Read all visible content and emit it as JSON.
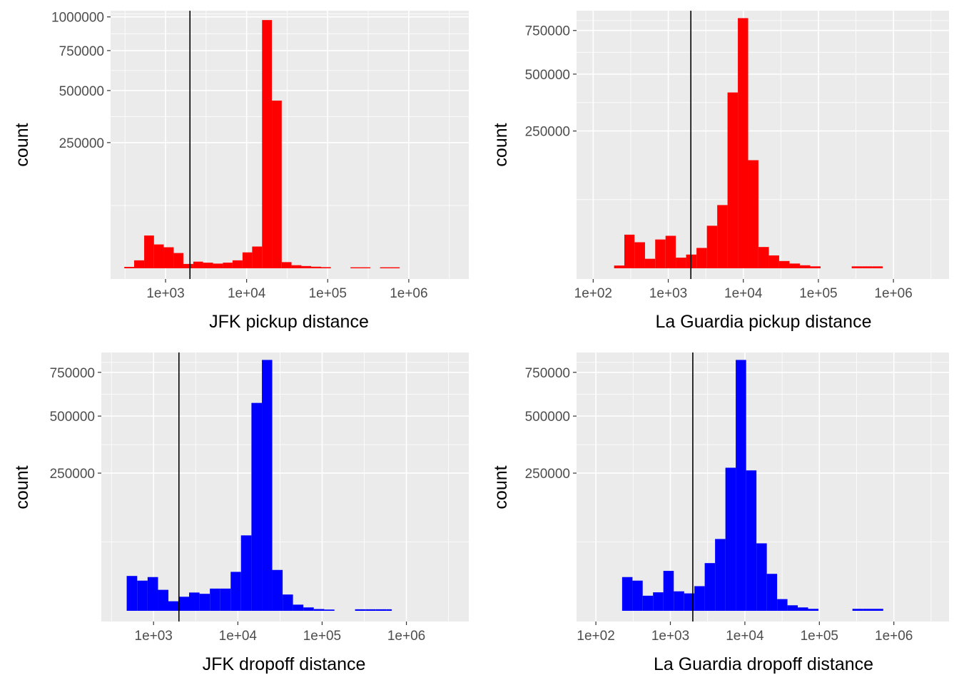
{
  "chart_data": [
    {
      "type": "bar",
      "title": "",
      "xlabel": "JFK pickup distance",
      "ylabel": "count",
      "x_scale": "log10",
      "y_scale": "sqrt",
      "xlim": [
        210,
        5500000
      ],
      "ylim": [
        0,
        1050000
      ],
      "x_ticks": [
        1000,
        10000,
        100000,
        1000000
      ],
      "x_tick_labels": [
        "1e+03",
        "1e+04",
        "1e+05",
        "1e+06"
      ],
      "y_ticks": [
        250000,
        500000,
        750000,
        1000000
      ],
      "y_tick_labels": [
        "250000",
        "500000",
        "750000",
        "1000000"
      ],
      "vline": 2000,
      "bar_color": "#ff0000",
      "grid": true,
      "bins": [
        {
          "x0": 310,
          "x1": 410,
          "count": 30
        },
        {
          "x0": 410,
          "x1": 545,
          "count": 1000
        },
        {
          "x0": 545,
          "x1": 720,
          "count": 17000
        },
        {
          "x0": 720,
          "x1": 950,
          "count": 9000
        },
        {
          "x0": 950,
          "x1": 1260,
          "count": 7000
        },
        {
          "x0": 1260,
          "x1": 1660,
          "count": 3700
        },
        {
          "x0": 1660,
          "x1": 2200,
          "count": 300
        },
        {
          "x0": 2200,
          "x1": 2900,
          "count": 700
        },
        {
          "x0": 2900,
          "x1": 3850,
          "count": 500
        },
        {
          "x0": 3850,
          "x1": 5100,
          "count": 350
        },
        {
          "x0": 5100,
          "x1": 6700,
          "count": 500
        },
        {
          "x0": 6700,
          "x1": 8900,
          "count": 1000
        },
        {
          "x0": 8900,
          "x1": 11700,
          "count": 4000
        },
        {
          "x0": 11700,
          "x1": 15500,
          "count": 7500
        },
        {
          "x0": 15500,
          "x1": 20500,
          "count": 975000
        },
        {
          "x0": 20500,
          "x1": 27100,
          "count": 445000
        },
        {
          "x0": 27100,
          "x1": 35800,
          "count": 600
        },
        {
          "x0": 35800,
          "x1": 47400,
          "count": 150
        },
        {
          "x0": 47400,
          "x1": 62600,
          "count": 80
        },
        {
          "x0": 62600,
          "x1": 82800,
          "count": 40
        },
        {
          "x0": 82800,
          "x1": 109500,
          "count": 20
        },
        {
          "x0": 191000,
          "x1": 253000,
          "count": 15
        },
        {
          "x0": 253000,
          "x1": 335000,
          "count": 15
        },
        {
          "x0": 442000,
          "x1": 585000,
          "count": 15
        },
        {
          "x0": 585000,
          "x1": 773000,
          "count": 15
        }
      ]
    },
    {
      "type": "bar",
      "title": "",
      "xlabel": "La Guardia pickup distance",
      "ylabel": "count",
      "x_scale": "log10",
      "y_scale": "sqrt",
      "xlim": [
        60,
        5500000
      ],
      "ylim": [
        0,
        880000
      ],
      "x_ticks": [
        100,
        1000,
        10000,
        100000,
        1000000
      ],
      "x_tick_labels": [
        "1e+02",
        "1e+03",
        "1e+04",
        "1e+05",
        "1e+06"
      ],
      "y_ticks": [
        250000,
        500000,
        750000
      ],
      "y_tick_labels": [
        "250000",
        "500000",
        "750000"
      ],
      "vline": 2000,
      "bar_color": "#ff0000",
      "grid": true,
      "bins": [
        {
          "x0": 190,
          "x1": 260,
          "count": 100
        },
        {
          "x0": 260,
          "x1": 355,
          "count": 15000
        },
        {
          "x0": 355,
          "x1": 490,
          "count": 9000
        },
        {
          "x0": 490,
          "x1": 670,
          "count": 1200
        },
        {
          "x0": 670,
          "x1": 920,
          "count": 11000
        },
        {
          "x0": 920,
          "x1": 1260,
          "count": 14000
        },
        {
          "x0": 1260,
          "x1": 1730,
          "count": 1500
        },
        {
          "x0": 1730,
          "x1": 2380,
          "count": 2500
        },
        {
          "x0": 2380,
          "x1": 3270,
          "count": 5500
        },
        {
          "x0": 3270,
          "x1": 4490,
          "count": 24000
        },
        {
          "x0": 4490,
          "x1": 6160,
          "count": 53000
        },
        {
          "x0": 6160,
          "x1": 8460,
          "count": 410000
        },
        {
          "x0": 8460,
          "x1": 11600,
          "count": 830000
        },
        {
          "x0": 11600,
          "x1": 15900,
          "count": 155000
        },
        {
          "x0": 15900,
          "x1": 21900,
          "count": 6000
        },
        {
          "x0": 21900,
          "x1": 30000,
          "count": 2200
        },
        {
          "x0": 30000,
          "x1": 41300,
          "count": 700
        },
        {
          "x0": 41300,
          "x1": 56700,
          "count": 300
        },
        {
          "x0": 56700,
          "x1": 77800,
          "count": 120
        },
        {
          "x0": 77800,
          "x1": 107000,
          "count": 50
        },
        {
          "x0": 278000,
          "x1": 382000,
          "count": 50
        },
        {
          "x0": 382000,
          "x1": 525000,
          "count": 50
        },
        {
          "x0": 525000,
          "x1": 720000,
          "count": 50
        }
      ]
    },
    {
      "type": "bar",
      "title": "",
      "xlabel": "JFK dropoff distance",
      "ylabel": "count",
      "x_scale": "log10",
      "y_scale": "sqrt",
      "xlim": [
        240,
        5500000
      ],
      "ylim": [
        0,
        880000
      ],
      "x_ticks": [
        1000,
        10000,
        100000,
        1000000
      ],
      "x_tick_labels": [
        "1e+03",
        "1e+04",
        "1e+05",
        "1e+06"
      ],
      "y_ticks": [
        250000,
        500000,
        750000
      ],
      "y_tick_labels": [
        "250000",
        "500000",
        "750000"
      ],
      "vline": 2000,
      "bar_color": "#0000ff",
      "grid": true,
      "bins": [
        {
          "x0": 480,
          "x1": 640,
          "count": 16000
        },
        {
          "x0": 640,
          "x1": 850,
          "count": 12000
        },
        {
          "x0": 850,
          "x1": 1130,
          "count": 15000
        },
        {
          "x0": 1130,
          "x1": 1500,
          "count": 5800
        },
        {
          "x0": 1500,
          "x1": 1990,
          "count": 1200
        },
        {
          "x0": 1990,
          "x1": 2640,
          "count": 2600
        },
        {
          "x0": 2640,
          "x1": 3510,
          "count": 4400
        },
        {
          "x0": 3510,
          "x1": 4660,
          "count": 3800
        },
        {
          "x0": 4660,
          "x1": 6190,
          "count": 6500
        },
        {
          "x0": 6190,
          "x1": 8220,
          "count": 6500
        },
        {
          "x0": 8220,
          "x1": 10900,
          "count": 20000
        },
        {
          "x0": 10900,
          "x1": 14500,
          "count": 75000
        },
        {
          "x0": 14500,
          "x1": 19300,
          "count": 570000
        },
        {
          "x0": 19300,
          "x1": 25600,
          "count": 830000
        },
        {
          "x0": 25600,
          "x1": 34000,
          "count": 22000
        },
        {
          "x0": 34000,
          "x1": 45100,
          "count": 3500
        },
        {
          "x0": 45100,
          "x1": 59900,
          "count": 500
        },
        {
          "x0": 59900,
          "x1": 79600,
          "count": 150
        },
        {
          "x0": 79600,
          "x1": 106000,
          "count": 40
        },
        {
          "x0": 106000,
          "x1": 140000,
          "count": 20
        },
        {
          "x0": 246000,
          "x1": 327000,
          "count": 30
        },
        {
          "x0": 327000,
          "x1": 434000,
          "count": 30
        },
        {
          "x0": 434000,
          "x1": 576000,
          "count": 30
        },
        {
          "x0": 576000,
          "x1": 670000,
          "count": 30
        }
      ]
    },
    {
      "type": "bar",
      "title": "",
      "xlabel": "La Guardia dropoff distance",
      "ylabel": "count",
      "x_scale": "log10",
      "y_scale": "sqrt",
      "xlim": [
        55,
        5500000
      ],
      "ylim": [
        0,
        880000
      ],
      "x_ticks": [
        100,
        1000,
        10000,
        100000,
        1000000
      ],
      "x_tick_labels": [
        "1e+02",
        "1e+03",
        "1e+04",
        "1e+05",
        "1e+06"
      ],
      "y_ticks": [
        250000,
        500000,
        750000
      ],
      "y_tick_labels": [
        "250000",
        "500000",
        "750000"
      ],
      "vline": 2000,
      "bar_color": "#0000ff",
      "grid": true,
      "bins": [
        {
          "x0": 225,
          "x1": 310,
          "count": 15000
        },
        {
          "x0": 310,
          "x1": 425,
          "count": 12000
        },
        {
          "x0": 425,
          "x1": 585,
          "count": 3000
        },
        {
          "x0": 585,
          "x1": 805,
          "count": 4500
        },
        {
          "x0": 805,
          "x1": 1110,
          "count": 21000
        },
        {
          "x0": 1110,
          "x1": 1530,
          "count": 5000
        },
        {
          "x0": 1530,
          "x1": 2100,
          "count": 4000
        },
        {
          "x0": 2100,
          "x1": 2890,
          "count": 8000
        },
        {
          "x0": 2890,
          "x1": 3980,
          "count": 30000
        },
        {
          "x0": 3980,
          "x1": 5480,
          "count": 68000
        },
        {
          "x0": 5480,
          "x1": 7540,
          "count": 270000
        },
        {
          "x0": 7540,
          "x1": 10400,
          "count": 830000
        },
        {
          "x0": 10400,
          "x1": 14300,
          "count": 260000
        },
        {
          "x0": 14300,
          "x1": 19700,
          "count": 60000
        },
        {
          "x0": 19700,
          "x1": 27100,
          "count": 18000
        },
        {
          "x0": 27100,
          "x1": 37300,
          "count": 1800
        },
        {
          "x0": 37300,
          "x1": 51300,
          "count": 400
        },
        {
          "x0": 51300,
          "x1": 70600,
          "count": 150
        },
        {
          "x0": 70600,
          "x1": 97200,
          "count": 50
        },
        {
          "x0": 278000,
          "x1": 382000,
          "count": 50
        },
        {
          "x0": 382000,
          "x1": 525000,
          "count": 50
        },
        {
          "x0": 525000,
          "x1": 720000,
          "count": 50
        }
      ]
    }
  ]
}
